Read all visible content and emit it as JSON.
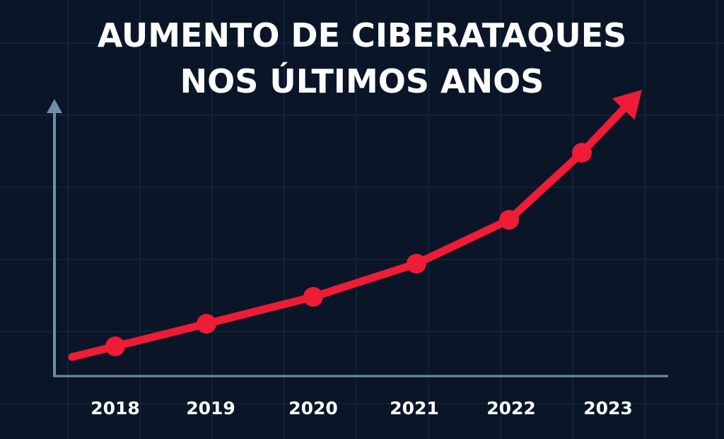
{
  "chart_data": {
    "type": "line",
    "title_lines": [
      "AUMENTO DE CIBERATAQUES",
      "NOS ÚLTIMOS ANOS"
    ],
    "categories": [
      "2018",
      "2019",
      "2020",
      "2021",
      "2022",
      "2023"
    ],
    "values": [
      42,
      74,
      112,
      159,
      221,
      316
    ],
    "ylim": [
      0,
      390
    ],
    "xlabel": "",
    "ylabel": "",
    "grid": true,
    "trend_arrow": true,
    "colors": {
      "background": "#0a1628",
      "grid": "#13263b",
      "axis": "#6f8ea6",
      "line": "#ee1c35",
      "text": "#ffffff"
    }
  }
}
